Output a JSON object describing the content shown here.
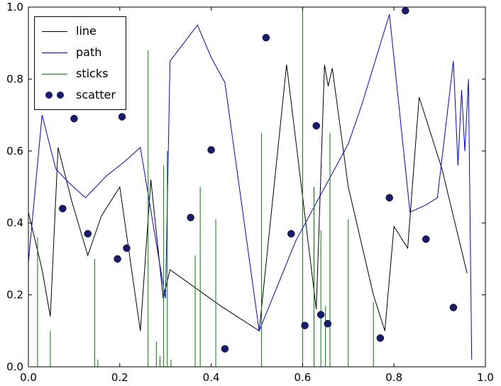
{
  "chart_data": {
    "type": "line",
    "title": "",
    "xlabel": "",
    "ylabel": "",
    "xlim": [
      0.0,
      1.0
    ],
    "ylim": [
      0.0,
      1.0
    ],
    "grid": false,
    "xticks": [
      0.0,
      0.2,
      0.4,
      0.6,
      0.8,
      1.0
    ],
    "yticks": [
      0.0,
      0.2,
      0.4,
      0.6,
      0.8,
      1.0
    ],
    "xtick_labels": [
      "0.0",
      "0.2",
      "0.4",
      "0.6",
      "0.8",
      "1.0"
    ],
    "ytick_labels": [
      "0.0",
      "0.2",
      "0.4",
      "0.6",
      "0.8",
      "1.0"
    ],
    "legend": {
      "position": "upper left",
      "labels": [
        "line",
        "path",
        "sticks",
        "scatter"
      ]
    },
    "series": [
      {
        "name": "line",
        "type": "line",
        "color": "#000000",
        "x": [
          0.0,
          0.03,
          0.048,
          0.065,
          0.095,
          0.13,
          0.16,
          0.2,
          0.245,
          0.268,
          0.295,
          0.31,
          0.42,
          0.505,
          0.565,
          0.63,
          0.648,
          0.656,
          0.665,
          0.7,
          0.755,
          0.78,
          0.8,
          0.83,
          0.855,
          0.905,
          0.96
        ],
        "y": [
          0.43,
          0.27,
          0.14,
          0.61,
          0.46,
          0.31,
          0.42,
          0.5,
          0.1,
          0.52,
          0.19,
          0.27,
          0.17,
          0.1,
          0.84,
          0.16,
          0.84,
          0.78,
          0.83,
          0.5,
          0.2,
          0.1,
          0.39,
          0.33,
          0.75,
          0.55,
          0.26
        ]
      },
      {
        "name": "path",
        "type": "line",
        "color": "#0000ff",
        "x": [
          0.0,
          0.03,
          0.06,
          0.09,
          0.125,
          0.17,
          0.21,
          0.245,
          0.3,
          0.31,
          0.37,
          0.4,
          0.43,
          0.505,
          0.585,
          0.7,
          0.73,
          0.79,
          0.835,
          0.87,
          0.895,
          0.93,
          0.94,
          0.948,
          0.955,
          0.963,
          0.97
        ],
        "y": [
          0.29,
          0.7,
          0.55,
          0.51,
          0.47,
          0.53,
          0.57,
          0.61,
          0.19,
          0.85,
          0.95,
          0.86,
          0.79,
          0.1,
          0.35,
          0.62,
          0.73,
          0.98,
          0.43,
          0.45,
          0.47,
          0.85,
          0.56,
          0.77,
          0.6,
          0.8,
          0.02
        ]
      },
      {
        "name": "sticks",
        "type": "sticks",
        "color": "#008000",
        "x": [
          0.02,
          0.048,
          0.145,
          0.152,
          0.262,
          0.28,
          0.288,
          0.296,
          0.304,
          0.312,
          0.365,
          0.376,
          0.41,
          0.51,
          0.6,
          0.625,
          0.64,
          0.65,
          0.66,
          0.7,
          0.755
        ],
        "y": [
          0.36,
          0.1,
          0.3,
          0.02,
          0.88,
          0.07,
          0.03,
          0.56,
          0.6,
          0.02,
          0.31,
          0.5,
          0.41,
          0.65,
          1.0,
          0.5,
          0.38,
          0.17,
          0.65,
          0.41,
          0.18
        ]
      },
      {
        "name": "scatter",
        "type": "scatter",
        "color": "#191970",
        "x": [
          0.075,
          0.1,
          0.13,
          0.195,
          0.205,
          0.215,
          0.355,
          0.4,
          0.43,
          0.52,
          0.575,
          0.605,
          0.63,
          0.64,
          0.655,
          0.77,
          0.79,
          0.825,
          0.87,
          0.93
        ],
        "y": [
          0.44,
          0.69,
          0.37,
          0.3,
          0.695,
          0.33,
          0.415,
          0.603,
          0.05,
          0.915,
          0.37,
          0.115,
          0.67,
          0.145,
          0.12,
          0.08,
          0.47,
          0.99,
          0.355,
          0.165
        ]
      }
    ]
  }
}
